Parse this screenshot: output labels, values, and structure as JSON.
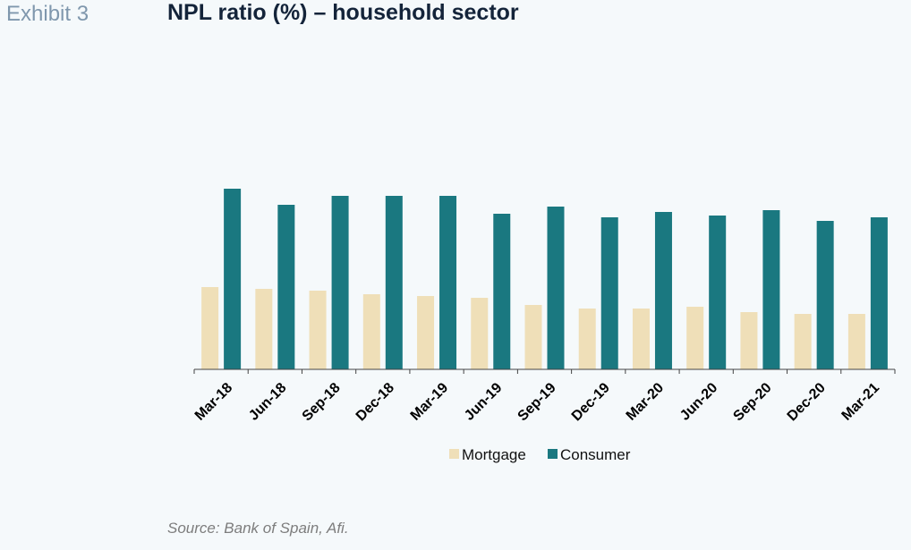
{
  "header": {
    "exhibit": "Exhibit 3",
    "title": "NPL ratio (%) – household sector"
  },
  "footer": {
    "source": "Source: Bank of Spain, Afi."
  },
  "chart_data": {
    "type": "bar",
    "categories": [
      "Mar-18",
      "Jun-18",
      "Sep-18",
      "Dec-18",
      "Mar-19",
      "Jun-19",
      "Sep-19",
      "Dec-19",
      "Mar-20",
      "Jun-20",
      "Sep-20",
      "Dec-20",
      "Mar-21"
    ],
    "series": [
      {
        "name": "Mortgage",
        "color": "#efdfb8",
        "values": [
          4.6,
          4.5,
          4.4,
          4.2,
          4.1,
          4.0,
          3.6,
          3.4,
          3.4,
          3.5,
          3.2,
          3.1,
          3.1
        ]
      },
      {
        "name": "Consumer",
        "color": "#1a7880",
        "values": [
          10.1,
          9.2,
          9.7,
          9.7,
          9.7,
          8.7,
          9.1,
          8.5,
          8.8,
          8.6,
          8.9,
          8.3,
          8.5
        ]
      }
    ],
    "ylim": [
      0,
      18
    ],
    "grid": false,
    "legend": "bottom",
    "xlabel": "",
    "ylabel": ""
  }
}
